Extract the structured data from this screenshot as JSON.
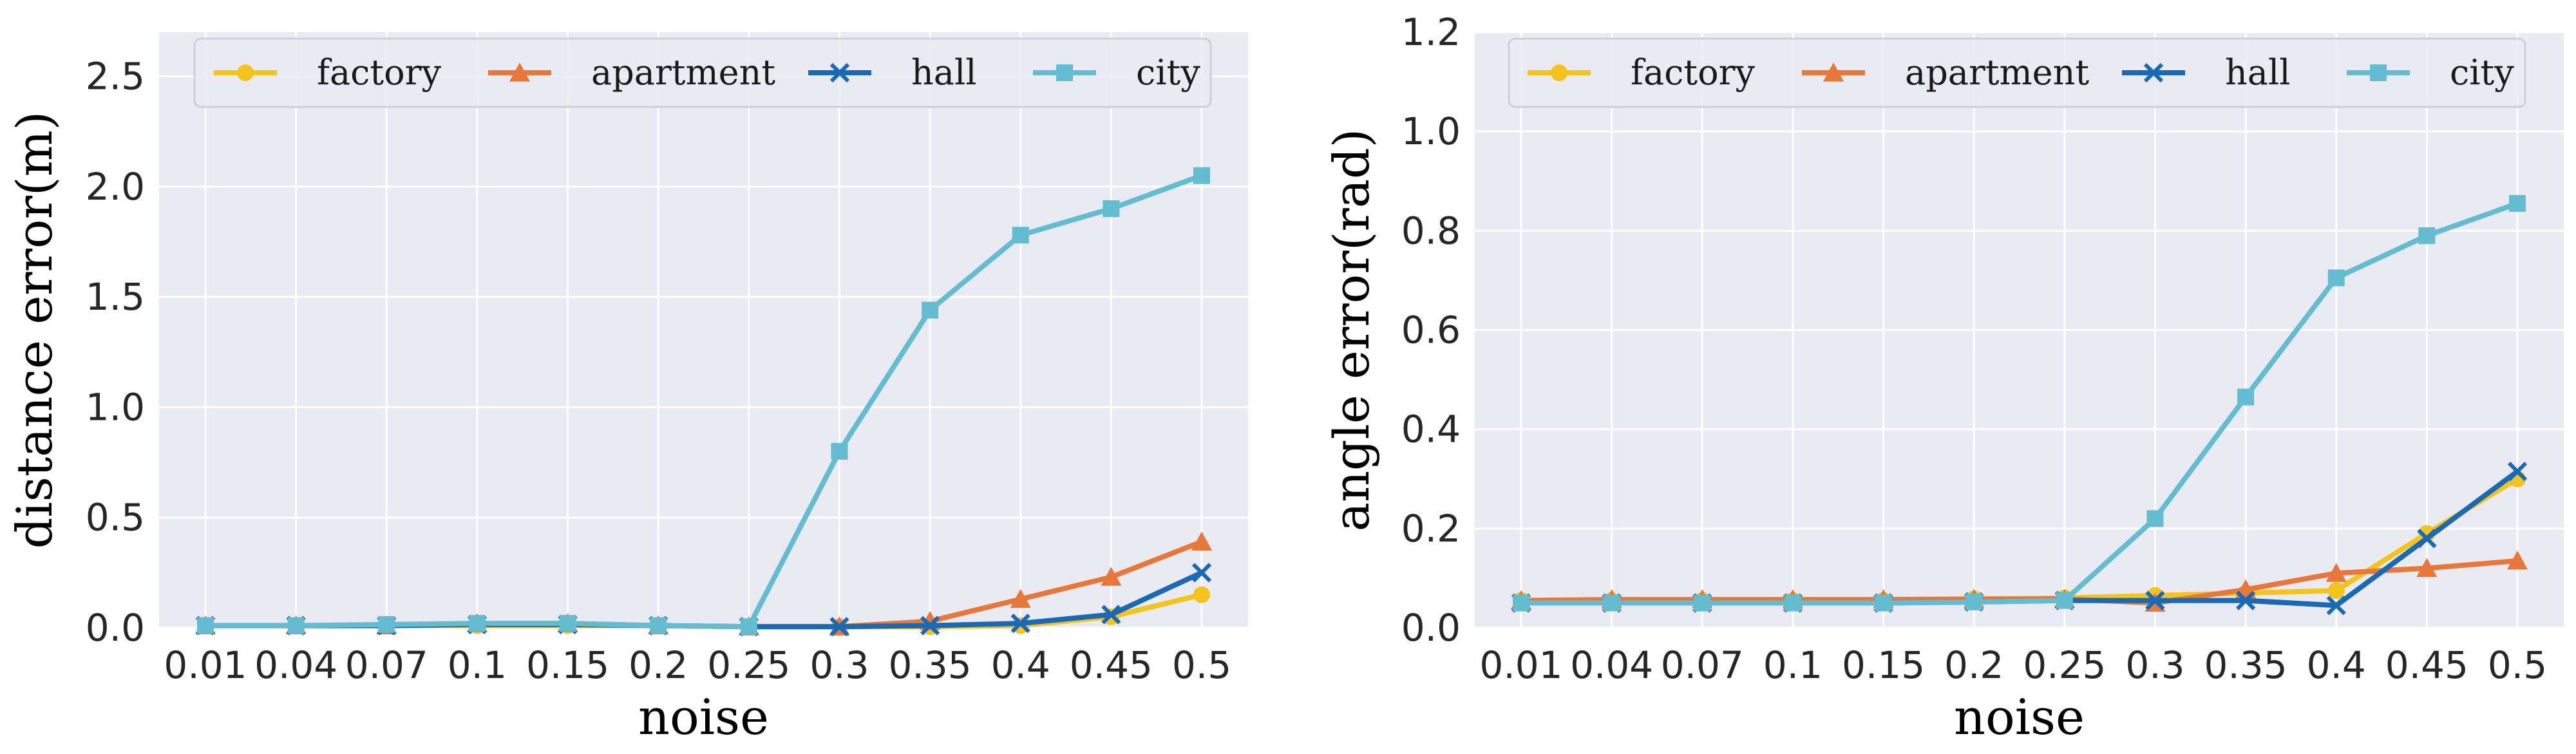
{
  "chart_data": [
    {
      "type": "line",
      "x": [
        "0.01",
        "0.04",
        "0.07",
        "0.1",
        "0.15",
        "0.2",
        "0.25",
        "0.3",
        "0.35",
        "0.4",
        "0.45",
        "0.5"
      ],
      "xlabel": "noise",
      "ylabel": "distance error(m)",
      "ylim": [
        0,
        2.7
      ],
      "yticks": [
        "0.0",
        "0.5",
        "1.0",
        "1.5",
        "2.0",
        "2.5"
      ],
      "legend_position": "top",
      "grid": true,
      "series": [
        {
          "name": "factory",
          "color": "#f5c41c",
          "marker": "circle",
          "values": [
            0.01,
            0.01,
            0.01,
            0.01,
            0.01,
            0.01,
            0.005,
            0.005,
            0.005,
            0.01,
            0.05,
            0.15
          ]
        },
        {
          "name": "apartment",
          "color": "#e8773a",
          "marker": "triangle",
          "values": [
            0.01,
            0.01,
            0.01,
            0.02,
            0.02,
            0.01,
            0.005,
            0.005,
            0.03,
            0.13,
            0.23,
            0.39
          ]
        },
        {
          "name": "hall",
          "color": "#1a69b4",
          "marker": "x",
          "values": [
            0.01,
            0.01,
            0.01,
            0.015,
            0.015,
            0.01,
            0.005,
            0.005,
            0.01,
            0.02,
            0.06,
            0.25
          ]
        },
        {
          "name": "city",
          "color": "#63bccf",
          "marker": "square",
          "values": [
            0.01,
            0.01,
            0.015,
            0.02,
            0.02,
            0.01,
            0.005,
            0.8,
            1.44,
            1.78,
            1.9,
            2.05
          ]
        }
      ]
    },
    {
      "type": "line",
      "x": [
        "0.01",
        "0.04",
        "0.07",
        "0.1",
        "0.15",
        "0.2",
        "0.25",
        "0.3",
        "0.35",
        "0.4",
        "0.45",
        "0.5"
      ],
      "xlabel": "noise",
      "ylabel": "angle error(rad)",
      "ylim": [
        0,
        1.2
      ],
      "yticks": [
        "0.0",
        "0.2",
        "0.4",
        "0.6",
        "0.8",
        "1.0",
        "1.2"
      ],
      "legend_position": "top",
      "grid": true,
      "series": [
        {
          "name": "factory",
          "color": "#f5c41c",
          "marker": "circle",
          "values": [
            0.055,
            0.055,
            0.055,
            0.055,
            0.055,
            0.058,
            0.06,
            0.065,
            0.07,
            0.075,
            0.19,
            0.3
          ]
        },
        {
          "name": "apartment",
          "color": "#e8773a",
          "marker": "triangle",
          "values": [
            0.055,
            0.057,
            0.057,
            0.057,
            0.057,
            0.058,
            0.058,
            0.05,
            0.077,
            0.11,
            0.12,
            0.135
          ]
        },
        {
          "name": "hall",
          "color": "#1a69b4",
          "marker": "x",
          "values": [
            0.05,
            0.05,
            0.05,
            0.05,
            0.05,
            0.052,
            0.055,
            0.055,
            0.055,
            0.045,
            0.18,
            0.315
          ]
        },
        {
          "name": "city",
          "color": "#63bccf",
          "marker": "square",
          "values": [
            0.05,
            0.05,
            0.05,
            0.05,
            0.05,
            0.052,
            0.055,
            0.22,
            0.465,
            0.705,
            0.79,
            0.855
          ]
        }
      ]
    }
  ]
}
